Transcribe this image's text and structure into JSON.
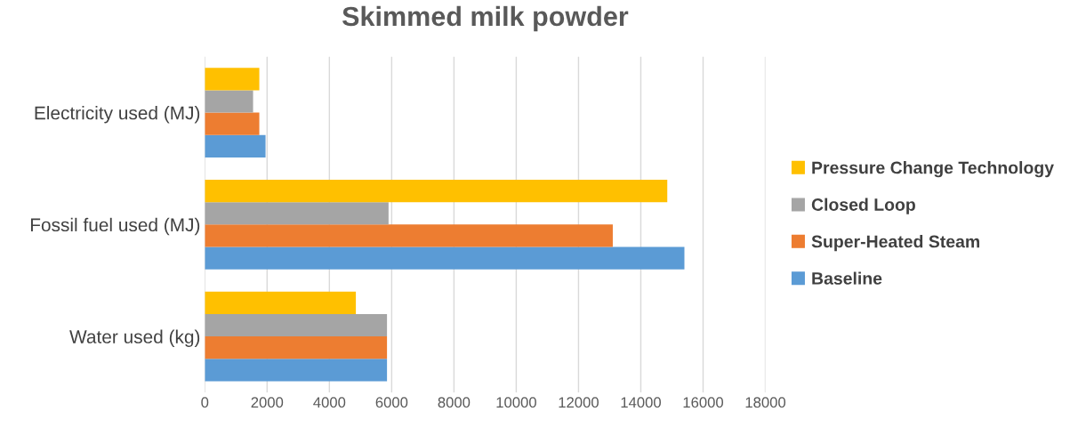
{
  "chart_data": {
    "type": "bar",
    "orientation": "horizontal",
    "title": "Skimmed milk powder",
    "categories": [
      "Electricity used (MJ)",
      "Fossil fuel used (MJ)",
      "Water used (kg)"
    ],
    "series": [
      {
        "name": "Baseline",
        "color": "#5b9bd5",
        "values": [
          1950,
          15400,
          5850
        ]
      },
      {
        "name": "Super-Heated Steam",
        "color": "#ed7d31",
        "values": [
          1750,
          13100,
          5850
        ]
      },
      {
        "name": "Closed Loop",
        "color": "#a5a5a5",
        "values": [
          1550,
          5900,
          5850
        ]
      },
      {
        "name": "Pressure Change Technology",
        "color": "#ffc000",
        "values": [
          1750,
          14850,
          4850
        ]
      }
    ],
    "xlim": [
      0,
      18000
    ],
    "xticks": [
      0,
      2000,
      4000,
      6000,
      8000,
      10000,
      12000,
      14000,
      16000,
      18000
    ],
    "grid": "x",
    "legend": "right"
  }
}
